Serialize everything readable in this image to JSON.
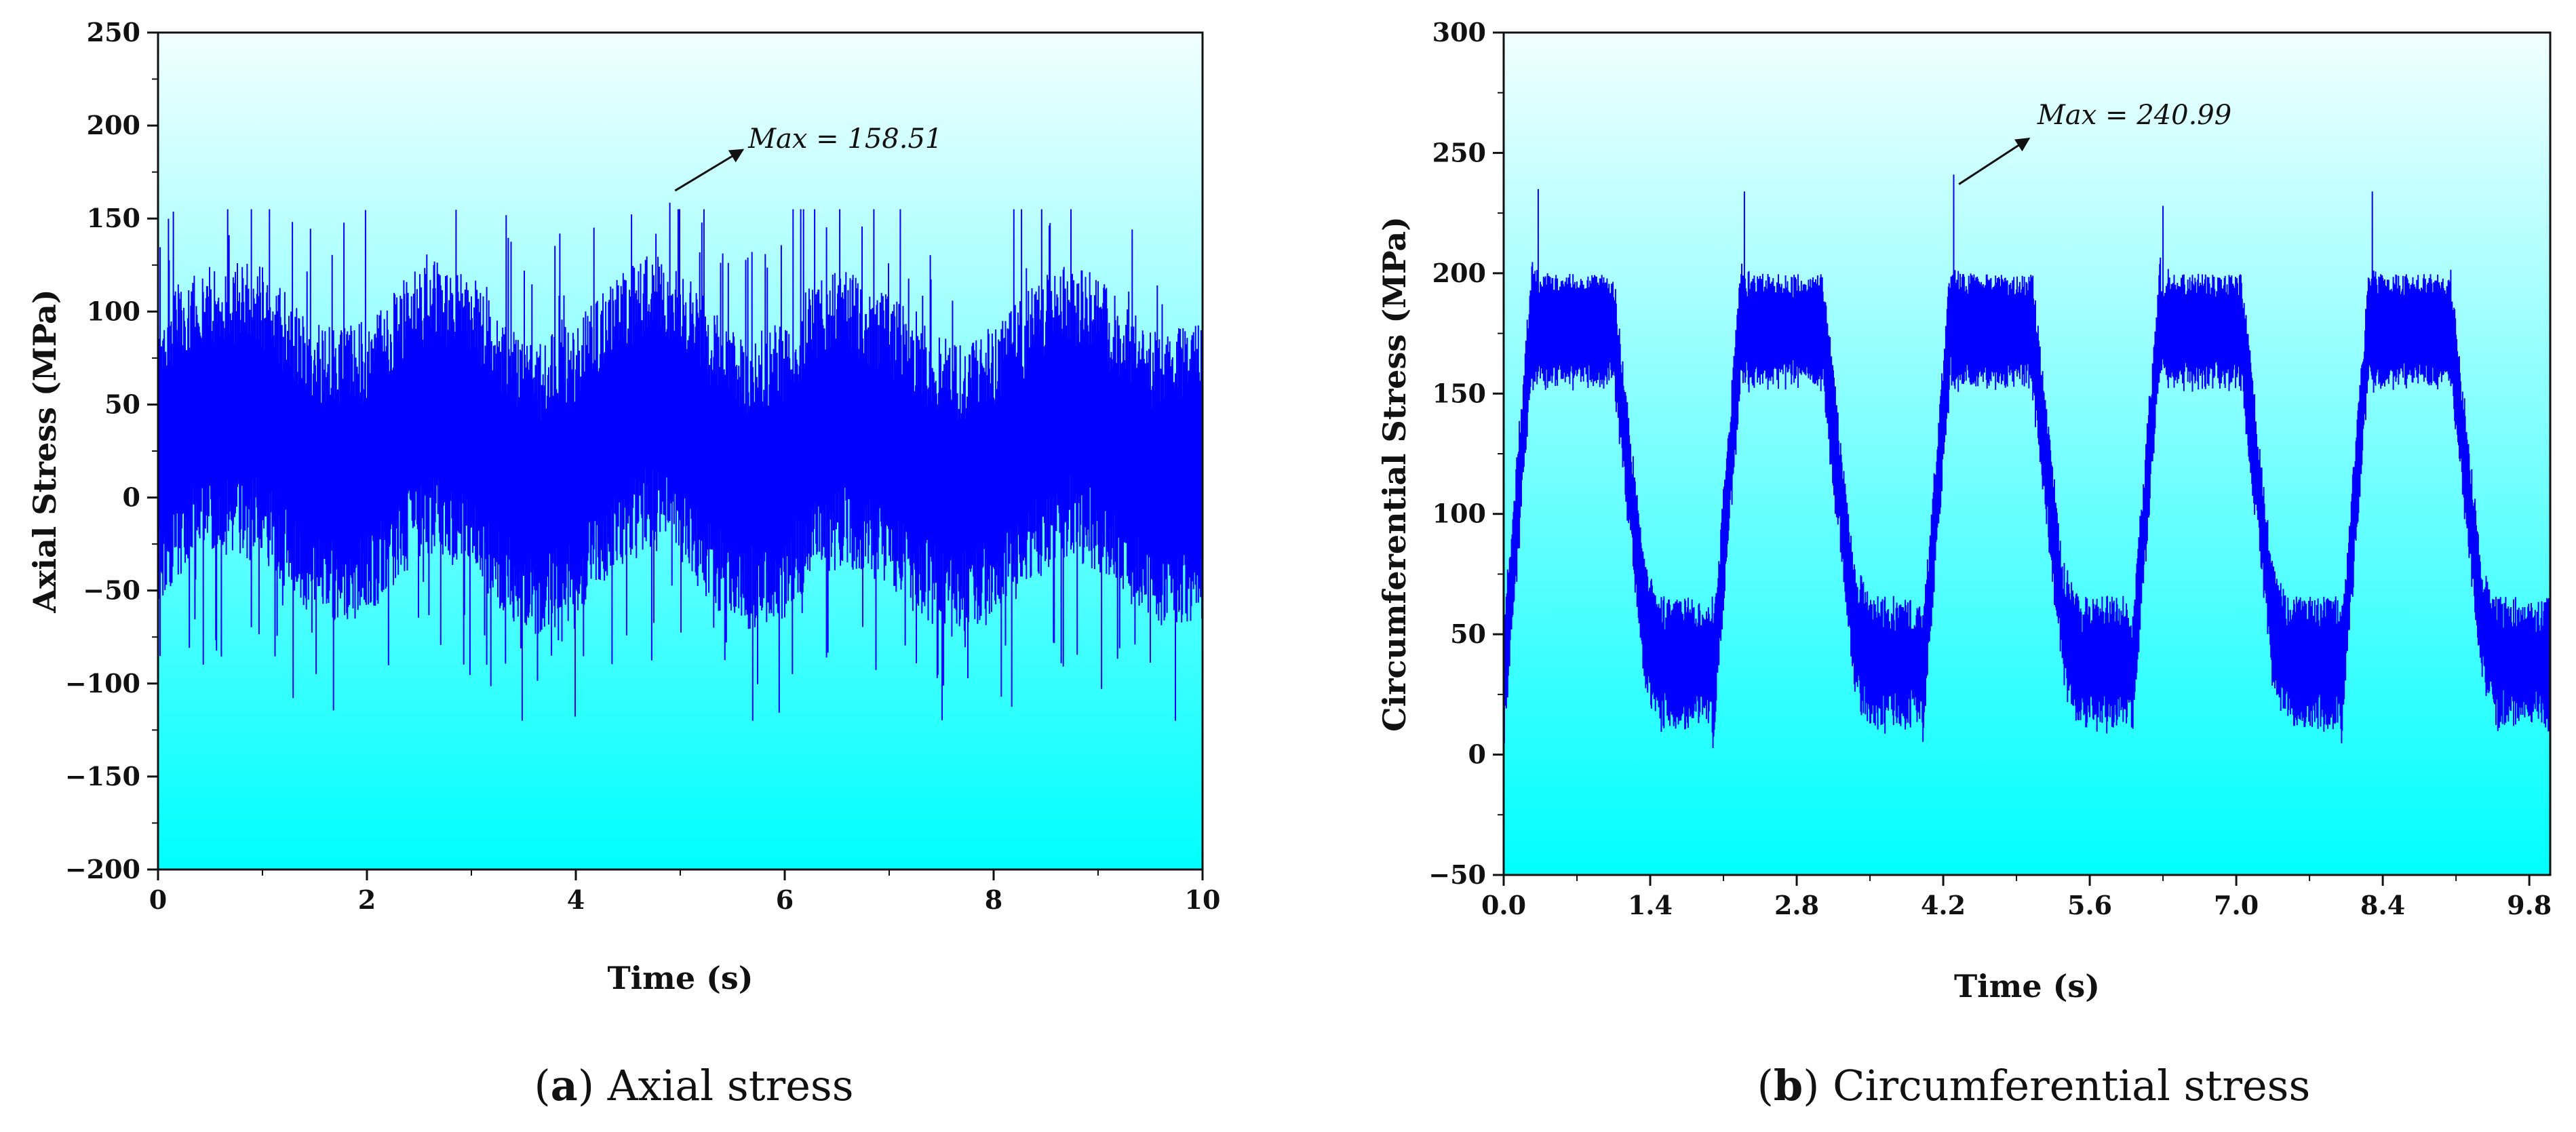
{
  "chart_data": [
    {
      "type": "line",
      "panel": "a",
      "caption_letter": "a",
      "caption_text": "Axial stress",
      "xlabel": "Time (s)",
      "ylabel": "Axial Stress (MPa)",
      "xlim": [
        0,
        10
      ],
      "ylim": [
        -200,
        250
      ],
      "x_ticks": [
        0,
        2,
        4,
        6,
        8,
        10
      ],
      "y_ticks": [
        -200,
        -150,
        -100,
        -50,
        0,
        50,
        100,
        150,
        200,
        250
      ],
      "x_tick_labels": [
        "0",
        "2",
        "4",
        "6",
        "8",
        "10"
      ],
      "y_tick_labels": [
        "−200",
        "−150",
        "−100",
        "−50",
        "0",
        "50",
        "100",
        "150",
        "200",
        "250"
      ],
      "series": [
        {
          "name": "Axial stress",
          "color": "#0000ff",
          "description_points": {
            "x": [
              0,
              0.3,
              0.6,
              1.0,
              1.3,
              1.6,
              2.0,
              2.3,
              2.6,
              3.0,
              3.3,
              3.6,
              4.0,
              4.4,
              4.7,
              5.0,
              5.3,
              5.6,
              6.0,
              6.3,
              6.6,
              7.0,
              7.3,
              7.6,
              8.0,
              8.4,
              8.7,
              9.0,
              9.3,
              9.6,
              10.0
            ],
            "y_center": [
              25,
              40,
              48,
              45,
              25,
              12,
              15,
              35,
              48,
              40,
              18,
              5,
              15,
              40,
              52,
              45,
              22,
              8,
              15,
              38,
              42,
              30,
              15,
              5,
              12,
              35,
              48,
              40,
              20,
              10,
              15
            ]
          }
        }
      ],
      "annotation": {
        "text": "Max = 158.51",
        "x": 4.9,
        "y": 158.51
      },
      "background_gradient": [
        "#f0ffff",
        "#00ffff"
      ]
    },
    {
      "type": "line",
      "panel": "b",
      "caption_letter": "b",
      "caption_text": "Circumferential stress",
      "xlabel": "Time (s)",
      "ylabel": "Circumferential Stress (MPa)",
      "xlim": [
        0,
        10
      ],
      "ylim": [
        -50,
        300
      ],
      "x_ticks": [
        0,
        1.4,
        2.8,
        4.2,
        5.6,
        7.0,
        8.4,
        9.8
      ],
      "y_ticks": [
        -50,
        0,
        50,
        100,
        150,
        200,
        250,
        300
      ],
      "x_tick_labels": [
        "0.0",
        "1.4",
        "2.8",
        "4.2",
        "5.6",
        "7.0",
        "8.4",
        "9.8"
      ],
      "y_tick_labels": [
        "−50",
        "0",
        "50",
        "100",
        "150",
        "200",
        "250",
        "300"
      ],
      "series": [
        {
          "name": "Circumferential stress",
          "color": "#0000ff",
          "period_s": 2.0,
          "high_level": 178,
          "low_level": 40,
          "peak_values": [
            235,
            234,
            240.99,
            228,
            234
          ],
          "peak_times": [
            0.33,
            2.3,
            4.3,
            6.3,
            8.3
          ]
        }
      ],
      "annotation": {
        "text": "Max = 240.99",
        "x": 4.3,
        "y": 240.99
      },
      "background_gradient": [
        "#f0ffff",
        "#00ffff"
      ]
    }
  ]
}
